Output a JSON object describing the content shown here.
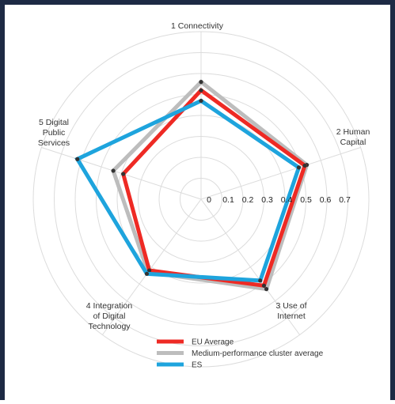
{
  "chart_data": {
    "type": "radar",
    "axes": [
      [
        "1 Connectivity"
      ],
      [
        "2 Human",
        "Capital"
      ],
      [
        "3 Use of",
        "Internet"
      ],
      [
        "4 Integration",
        "of Digital",
        "Technology"
      ],
      [
        "5 Digital",
        "Public",
        "Services"
      ]
    ],
    "ticks": [
      "0",
      "0.1",
      "0.2",
      "0.3",
      "0.4",
      "0.5",
      "0.6",
      "0.7"
    ],
    "rmax": 0.8,
    "series": [
      {
        "name": "Medium-performance cluster average",
        "color": "#bdbdbd",
        "values": [
          0.56,
          0.53,
          0.53,
          0.43,
          0.44
        ]
      },
      {
        "name": "EU Average",
        "color": "#ee2a24",
        "values": [
          0.52,
          0.52,
          0.51,
          0.42,
          0.39
        ]
      },
      {
        "name": "ES",
        "color": "#1ea4dd",
        "values": [
          0.47,
          0.49,
          0.48,
          0.44,
          0.62
        ]
      }
    ],
    "legend": {
      "position": "bottom",
      "order": [
        "EU Average",
        "Medium-performance cluster average",
        "ES"
      ]
    },
    "grid": true
  }
}
